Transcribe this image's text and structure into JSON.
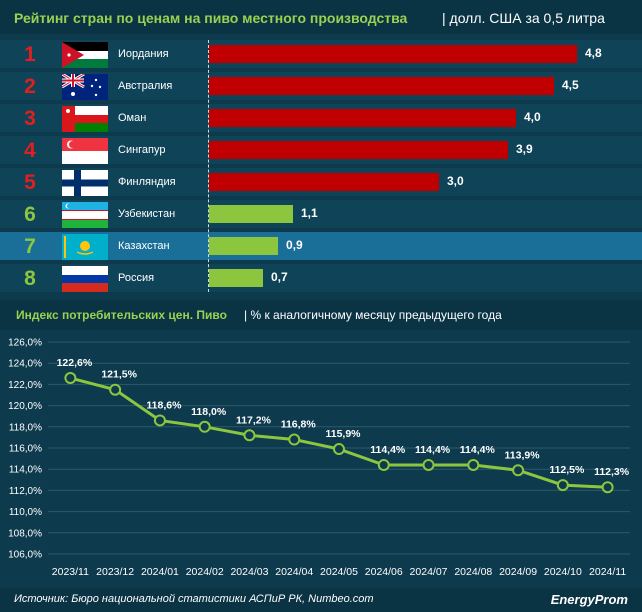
{
  "header": {
    "title": "Рейтинг стран по ценам на пиво местного производства",
    "subtitle": "| долл. США за 0,5 литра"
  },
  "ranking": [
    {
      "rank": "1",
      "country": "Иордания",
      "value": 4.8,
      "label": "4,8",
      "flag": "jordan-flag-icon"
    },
    {
      "rank": "2",
      "country": "Австралия",
      "value": 4.5,
      "label": "4,5",
      "flag": "australia-flag-icon"
    },
    {
      "rank": "3",
      "country": "Оман",
      "value": 4.0,
      "label": "4,0",
      "flag": "oman-flag-icon"
    },
    {
      "rank": "4",
      "country": "Сингапур",
      "value": 3.9,
      "label": "3,9",
      "flag": "singapore-flag-icon"
    },
    {
      "rank": "5",
      "country": "Финляндия",
      "value": 3.0,
      "label": "3,0",
      "flag": "finland-flag-icon"
    },
    {
      "rank": "6",
      "country": "Узбекистан",
      "value": 1.1,
      "label": "1,1",
      "flag": "uzbekistan-flag-icon"
    },
    {
      "rank": "7",
      "country": "Казахстан",
      "value": 0.9,
      "label": "0,9",
      "flag": "kazakhstan-flag-icon"
    },
    {
      "rank": "8",
      "country": "Россия",
      "value": 0.7,
      "label": "0,7",
      "flag": "russia-flag-icon"
    }
  ],
  "colors": {
    "accent_green": "#8cc63f",
    "bar_red": "#c00000",
    "rank_red": "#e11f1f",
    "background": "#0d3a4d",
    "highlight_row": "#1a6f99"
  },
  "chart_header": {
    "title": "Индекс потребительских цен. Пиво",
    "subtitle": "| % к аналогичному месяцу предыдущего года"
  },
  "chart_data": [
    {
      "type": "bar",
      "title": "Рейтинг стран по ценам на пиво местного производства",
      "ylabel": "долл. США за 0,5 литра",
      "categories": [
        "Иордания",
        "Австралия",
        "Оман",
        "Сингапур",
        "Финляндия",
        "Узбекистан",
        "Казахстан",
        "Россия"
      ],
      "values": [
        4.8,
        4.5,
        4.0,
        3.9,
        3.0,
        1.1,
        0.9,
        0.7
      ],
      "orientation": "horizontal"
    },
    {
      "type": "line",
      "title": "Индекс потребительских цен. Пиво",
      "ylabel": "% к аналогичному месяцу предыдущего года",
      "categories": [
        "2023/11",
        "2023/12",
        "2024/01",
        "2024/02",
        "2024/03",
        "2024/04",
        "2024/05",
        "2024/06",
        "2024/07",
        "2024/08",
        "2024/09",
        "2024/10",
        "2024/11"
      ],
      "values": [
        122.6,
        121.5,
        118.6,
        118.0,
        117.2,
        116.8,
        115.9,
        114.4,
        114.4,
        114.4,
        113.9,
        112.5,
        112.3
      ],
      "data_labels": [
        "122,6%",
        "121,5%",
        "118,6%",
        "118,0%",
        "117,2%",
        "116,8%",
        "115,9%",
        "114,4%",
        "114,4%",
        "114,4%",
        "113,9%",
        "112,5%",
        "112,3%"
      ],
      "ylim": [
        106,
        126
      ],
      "yticks": [
        "106,0%",
        "108,0%",
        "110,0%",
        "112,0%",
        "114,0%",
        "116,0%",
        "118,0%",
        "120,0%",
        "122,0%",
        "124,0%",
        "126,0%"
      ],
      "grid": true
    }
  ],
  "footer": {
    "source": "Источник: Бюро национальной статистики АСПиР РК, Numbeo.com",
    "logo": "EnergyProm"
  }
}
